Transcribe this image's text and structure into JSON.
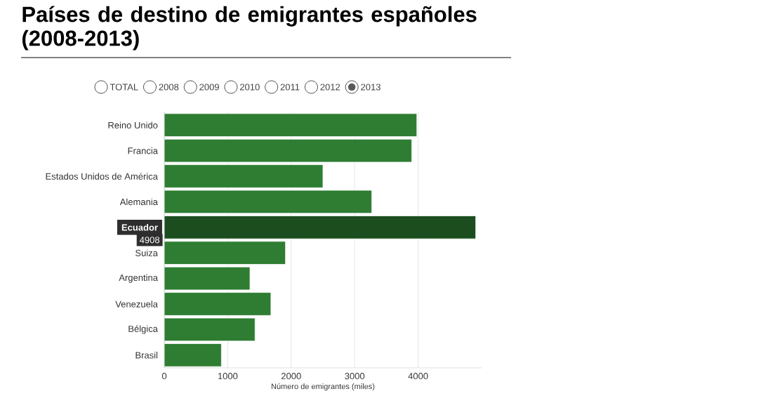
{
  "chart_data": {
    "type": "bar",
    "orientation": "horizontal",
    "title": "Países de destino de emigrantes españoles (2008-2013)",
    "xlabel": "Número de emigrantes (miles)",
    "categories": [
      "Reino Unido",
      "Francia",
      "Estados Unidos de América",
      "Alemania",
      "Ecuador",
      "Suiza",
      "Argentina",
      "Venezuela",
      "Bélgica",
      "Brasil"
    ],
    "values": [
      3980,
      3900,
      2500,
      3270,
      4908,
      1910,
      1350,
      1680,
      1430,
      900
    ],
    "value_labels": [
      null,
      null,
      null,
      null,
      "4908",
      null,
      null,
      null,
      null,
      null
    ],
    "colors": [
      "#2e7d32",
      "#2e7d32",
      "#2e7d32",
      "#2e7d32",
      "#1b4d1e",
      "#2e7d32",
      "#2e7d32",
      "#2e7d32",
      "#2e7d32",
      "#2e7d32"
    ],
    "xlim": [
      0,
      5000
    ],
    "xticks": [
      0,
      1000,
      2000,
      3000,
      4000
    ],
    "grid": "x",
    "annotations": [
      "TOTAL",
      "2008",
      "2009",
      "2010",
      "2011",
      "2012",
      "2013"
    ]
  }
}
